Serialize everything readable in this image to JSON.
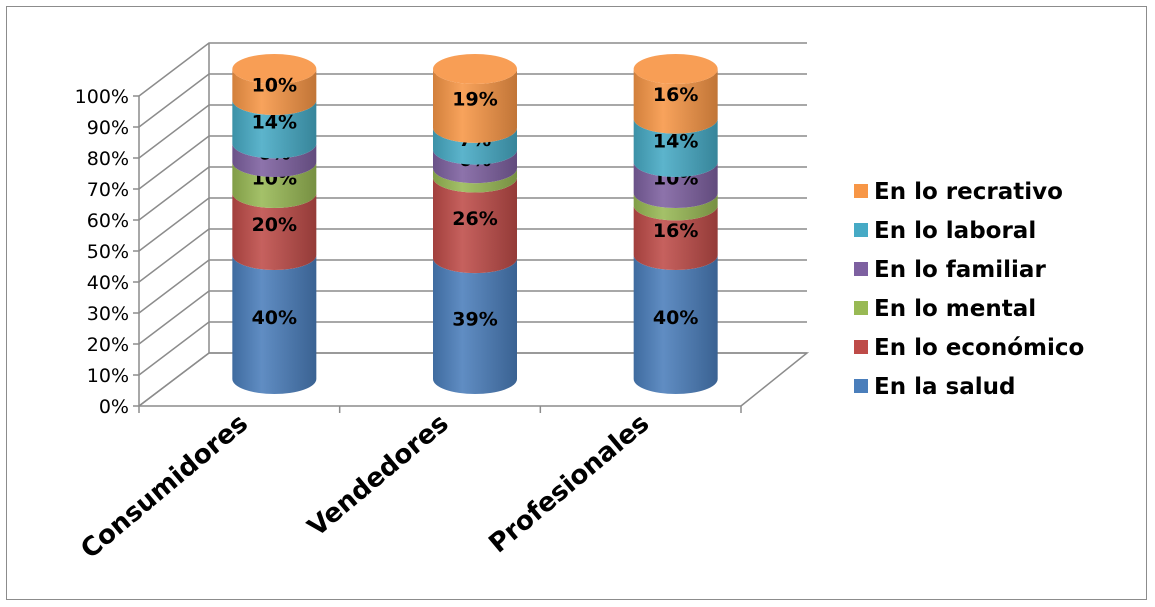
{
  "chart_data": {
    "type": "bar",
    "stacked": true,
    "percent_stacked": true,
    "three_d": true,
    "bar_shape": "cylinder",
    "categories": [
      "Consumidores",
      "Vendedores",
      "Profesionales"
    ],
    "series": [
      {
        "name": "En la salud",
        "values": [
          40,
          39,
          40
        ],
        "labels": [
          "40%",
          "39%",
          "40%"
        ],
        "color": "#4a7ebb"
      },
      {
        "name": "En lo económico",
        "values": [
          20,
          26,
          16
        ],
        "labels": [
          "20%",
          "26%",
          "16%"
        ],
        "color": "#be4b48"
      },
      {
        "name": "En lo mental",
        "values": [
          10,
          3,
          4
        ],
        "labels": [
          "10%",
          "3%",
          "4%"
        ],
        "color": "#98b954"
      },
      {
        "name": "En lo familiar",
        "values": [
          6,
          6,
          10
        ],
        "labels": [
          "6%",
          "6%",
          "10%"
        ],
        "color": "#7d60a0"
      },
      {
        "name": "En lo laboral",
        "values": [
          14,
          7,
          14
        ],
        "labels": [
          "14%",
          "7%",
          "14%"
        ],
        "color": "#46aac5"
      },
      {
        "name": "En lo recrativo",
        "values": [
          10,
          19,
          16
        ],
        "labels": [
          "10%",
          "19%",
          "16%"
        ],
        "color": "#f79646"
      }
    ],
    "y_ticks": [
      "0%",
      "10%",
      "20%",
      "30%",
      "40%",
      "50%",
      "60%",
      "70%",
      "80%",
      "90%",
      "100%"
    ],
    "ylim": [
      0,
      100
    ],
    "grid": true,
    "legend_position": "right"
  }
}
